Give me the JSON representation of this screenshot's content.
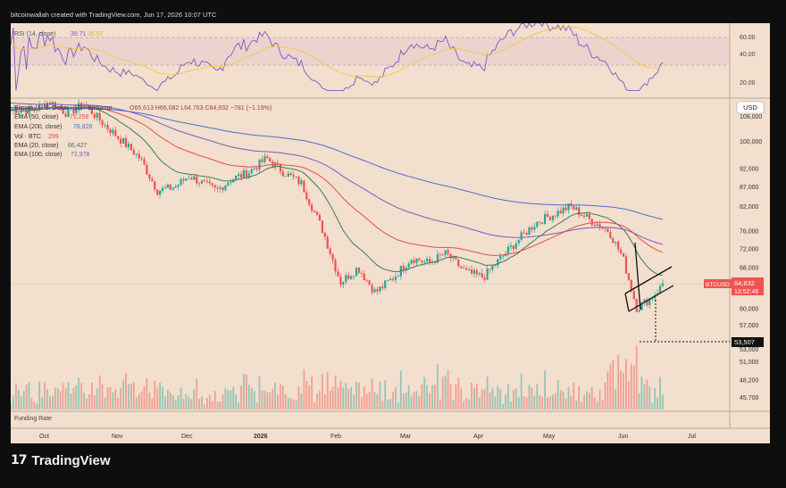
{
  "header": {
    "credit": "bitcoinwallah created with TradingView.com, Jun 17, 2026 10:07 UTC"
  },
  "rsi": {
    "label": "RSI (14, close)",
    "value": "39.71",
    "ma_value": "36.07",
    "ticks": [
      "60.00",
      "40.00",
      "20.00"
    ]
  },
  "legend": {
    "title": "Bitcoin / U.S. Dollar · 1D · Bitstamp",
    "ohlc": "O65,613 H66,082 L64,763 C64,832 −781 (−1.19%)",
    "rows": [
      {
        "label": "EMA (50, close)",
        "value": "71,258",
        "color": "#e0514f"
      },
      {
        "label": "EMA (200, close)",
        "value": "78,826",
        "color": "#4a6fd1"
      },
      {
        "label": "Vol · BTC",
        "value": "299",
        "color": "#e0514f"
      },
      {
        "label": "EMA (20, close)",
        "value": "66,427",
        "color": "#3e7a5a"
      },
      {
        "label": "EMA (100, close)",
        "value": "72,978",
        "color": "#7d5bb6"
      }
    ]
  },
  "price_axis": {
    "currency": "USD",
    "ticks": [
      "108,000",
      "100,000",
      "92,000",
      "87,000",
      "82,000",
      "76,000",
      "72,000",
      "68,000",
      "64,000",
      "60,000",
      "57,000",
      "53,000",
      "51,000",
      "48,200",
      "45,700"
    ]
  },
  "price_tag": {
    "symbol": "BTCUSD",
    "price": "64,832",
    "countdown": "13:52:46"
  },
  "target_tag": {
    "price": "53,507"
  },
  "funding": {
    "label": "Funding Rate"
  },
  "time_axis": {
    "ticks": [
      "Oct",
      "Nov",
      "Dec",
      "2026",
      "Feb",
      "Mar",
      "Apr",
      "May",
      "Jun",
      "Jul"
    ]
  },
  "brand": {
    "mark": "17",
    "name": "TradingView"
  },
  "colors": {
    "background": "#f2dfcd",
    "up": "#26a69a",
    "down": "#ef5350",
    "price_tag": "#ef5350",
    "rsi_line": "#7e57c2",
    "rsi_ma": "#f5c842"
  },
  "chart_data": {
    "type": "candlestick",
    "symbol": "BTCUSD",
    "timeframe": "1D",
    "x_range": [
      "Oct",
      "Jul"
    ],
    "y_range": [
      45700,
      112000
    ],
    "last": {
      "open": 65613,
      "high": 66082,
      "low": 64763,
      "close": 64832,
      "change": -781,
      "change_pct": -1.19
    },
    "close_path": [
      [
        "Oct",
        110000
      ],
      [
        "Oct",
        113000
      ],
      [
        "Oct",
        109000
      ],
      [
        "Oct",
        112000
      ],
      [
        "Nov",
        105000
      ],
      [
        "Nov",
        100000
      ],
      [
        "Nov",
        95000
      ],
      [
        "Nov",
        86000
      ],
      [
        "Dec",
        87000
      ],
      [
        "Dec",
        90000
      ],
      [
        "Dec",
        88000
      ],
      [
        "Dec",
        86000
      ],
      [
        "Dec",
        89000
      ],
      [
        "2026",
        91000
      ],
      [
        "2026",
        95000
      ],
      [
        "2026",
        91000
      ],
      [
        "2026",
        88000
      ],
      [
        "Feb",
        76000
      ],
      [
        "Feb",
        65000
      ],
      [
        "Feb",
        68000
      ],
      [
        "Feb",
        63000
      ],
      [
        "Mar",
        66000
      ],
      [
        "Mar",
        70000
      ],
      [
        "Mar",
        69000
      ],
      [
        "Mar",
        71000
      ],
      [
        "Apr",
        67000
      ],
      [
        "Apr",
        66000
      ],
      [
        "Apr",
        70000
      ],
      [
        "Apr",
        74000
      ],
      [
        "May",
        78000
      ],
      [
        "May",
        80000
      ],
      [
        "May",
        82000
      ],
      [
        "May",
        79000
      ],
      [
        "Jun",
        76000
      ],
      [
        "Jun",
        70000
      ],
      [
        "Jun",
        60000
      ],
      [
        "Jun",
        62000
      ],
      [
        "Jun",
        64832
      ]
    ],
    "ema": [
      {
        "name": "EMA (20, close)",
        "last": 66427,
        "color": "#3e7a5a"
      },
      {
        "name": "EMA (50, close)",
        "last": 71258,
        "color": "#e0514f"
      },
      {
        "name": "EMA (100, close)",
        "last": 72978,
        "color": "#7d5bb6"
      },
      {
        "name": "EMA (200, close)",
        "last": 78826,
        "color": "#4a6fd1"
      }
    ],
    "rsi": {
      "period": 14,
      "last": 39.71,
      "ma_last": 36.07,
      "band": [
        30,
        70
      ]
    },
    "volume": {
      "unit": "BTC",
      "last": 299
    },
    "target": 53507
  }
}
